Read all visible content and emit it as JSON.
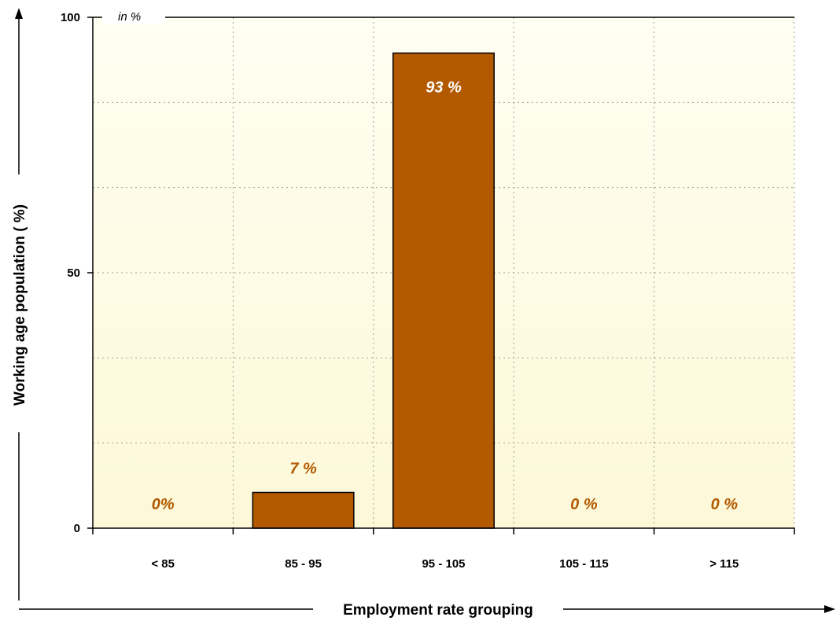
{
  "colors": {
    "bar_fill": "#b35900",
    "bar_stroke": "#000000",
    "plot_bg_top": "#fffff2",
    "plot_bg_bottom": "#fdf8d8",
    "grid": "#a0a0a0",
    "label_inside": "#ffffff",
    "label_outside": "#b35900"
  },
  "chart_data": {
    "type": "bar",
    "unit_label": "in %",
    "xlabel": "Employment rate grouping",
    "ylabel": "Working age population ( %)",
    "ylim": [
      0,
      100
    ],
    "yticks": [
      0,
      50,
      100
    ],
    "grid": true,
    "categories": [
      "< 85",
      "85 - 95",
      "95 - 105",
      "105 - 115",
      "> 115"
    ],
    "values": [
      0,
      7,
      93,
      0,
      0
    ],
    "data_labels": [
      "0%",
      "7 %",
      "93 %",
      "0 %",
      "0 %"
    ],
    "label_inside": [
      false,
      false,
      true,
      false,
      false
    ]
  }
}
